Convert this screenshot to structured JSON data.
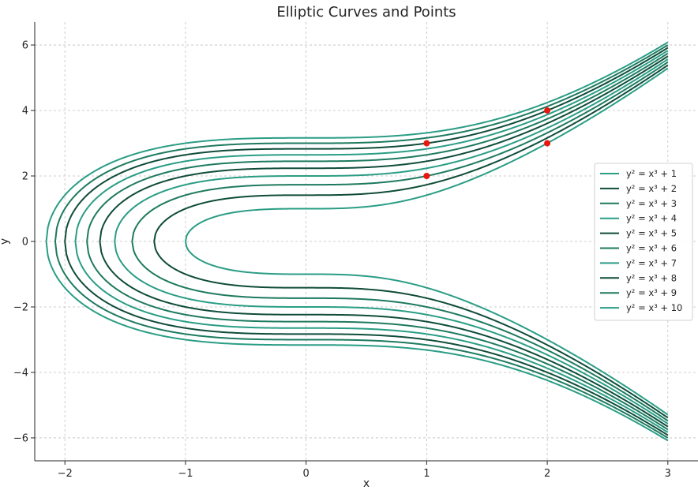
{
  "chart_data": {
    "type": "line",
    "title": "Elliptic Curves and Points",
    "xlabel": "x",
    "ylabel": "y",
    "xlim": [
      -2.25,
      3.25
    ],
    "ylim": [
      -6.7,
      6.7
    ],
    "xticks": [
      -2,
      -1,
      0,
      1,
      2,
      3
    ],
    "xtick_labels": [
      "−2",
      "−1",
      "0",
      "1",
      "2",
      "3"
    ],
    "yticks": [
      -6,
      -4,
      -2,
      0,
      2,
      4,
      6
    ],
    "ytick_labels": [
      "−6",
      "−4",
      "−2",
      "0",
      "2",
      "4",
      "6"
    ],
    "grid": true,
    "legend_position": "center-right",
    "x_max": 3,
    "series": [
      {
        "name": "y² = x³ + 1",
        "b": 1,
        "color": "#2a9d85"
      },
      {
        "name": "y² = x³ + 2",
        "b": 2,
        "color": "#0f4c3a"
      },
      {
        "name": "y² = x³ + 3",
        "b": 3,
        "color": "#1e7a5f"
      },
      {
        "name": "y² = x³ + 4",
        "b": 4,
        "color": "#2a9d85"
      },
      {
        "name": "y² = x³ + 5",
        "b": 5,
        "color": "#0f4c3a"
      },
      {
        "name": "y² = x³ + 6",
        "b": 6,
        "color": "#1e7a5f"
      },
      {
        "name": "y² = x³ + 7",
        "b": 7,
        "color": "#2a9d85"
      },
      {
        "name": "y² = x³ + 8",
        "b": 8,
        "color": "#0f4c3a"
      },
      {
        "name": "y² = x³ + 9",
        "b": 9,
        "color": "#1e7a5f"
      },
      {
        "name": "y² = x³ + 10",
        "b": 10,
        "color": "#2a9d85"
      }
    ],
    "points": [
      {
        "x": 1,
        "y": 2
      },
      {
        "x": 1,
        "y": 3
      },
      {
        "x": 2,
        "y": 3
      },
      {
        "x": 2,
        "y": 4
      }
    ],
    "point_color": "#e8170f"
  }
}
